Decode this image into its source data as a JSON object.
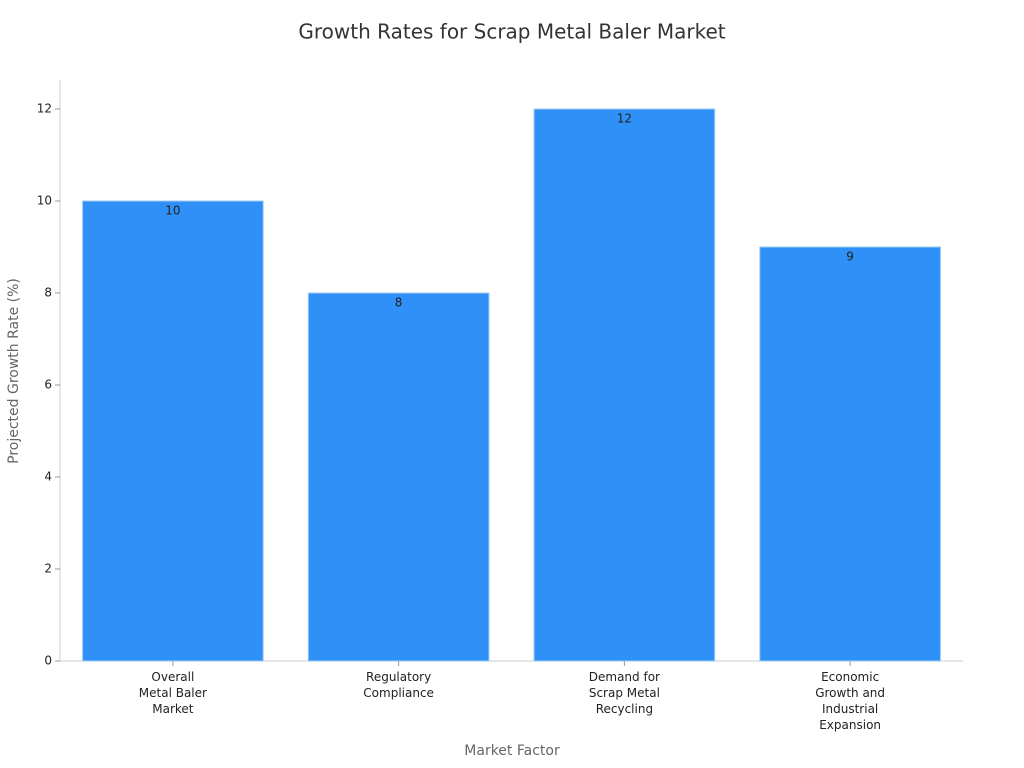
{
  "chart_data": {
    "type": "bar",
    "title": "Growth Rates for Scrap Metal Baler Market",
    "x_label": "Market Factor",
    "y_label": "Projected Growth Rate (%)",
    "categories": [
      "Overall Metal Baler Market",
      "Regulatory Compliance",
      "Demand for Scrap Metal Recycling",
      "Economic Growth and Industrial Expansion"
    ],
    "values": [
      10,
      8,
      12,
      9
    ],
    "color": "#2f91f7",
    "ylim": [
      0,
      12.6
    ],
    "yticks": [
      0,
      2,
      4,
      6,
      8,
      10,
      12
    ],
    "grid": false
  }
}
